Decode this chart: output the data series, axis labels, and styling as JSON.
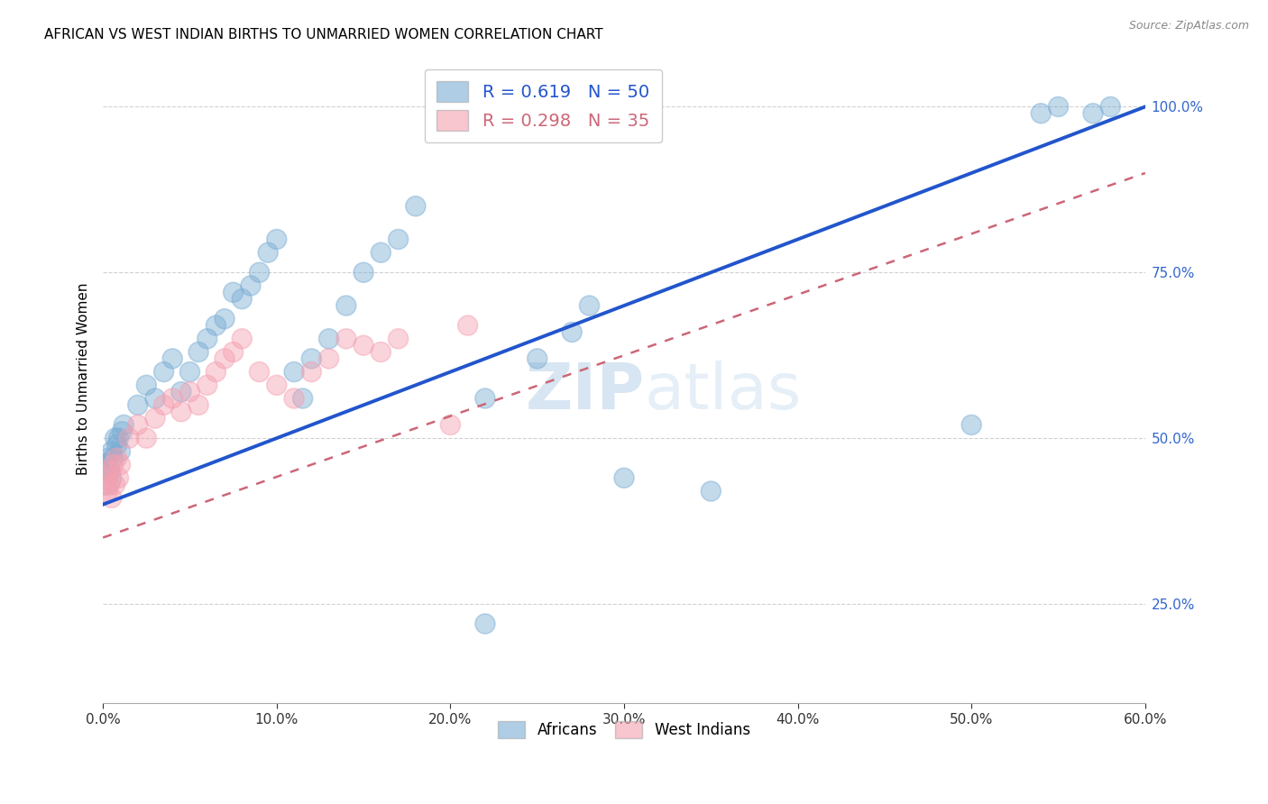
{
  "title": "AFRICAN VS WEST INDIAN BIRTHS TO UNMARRIED WOMEN CORRELATION CHART",
  "source": "Source: ZipAtlas.com",
  "ylabel": "Births to Unmarried Women",
  "xlim": [
    0.0,
    0.6
  ],
  "ylim": [
    0.1,
    1.08
  ],
  "legend_R_african": "R = 0.619",
  "legend_N_african": "N = 50",
  "legend_R_west_indian": "R = 0.298",
  "legend_N_west_indian": "N = 35",
  "african_color": "#7aadd4",
  "west_indian_color": "#f4a0b0",
  "african_line_color": "#2255cc",
  "west_indian_line_color": "#cc6677",
  "background_color": "#ffffff",
  "grid_color": "#cccccc",
  "african_line": [
    0.0,
    0.4,
    0.6,
    1.0
  ],
  "west_indian_line": [
    0.0,
    0.35,
    0.6,
    0.9
  ],
  "africans_x": [
    0.001,
    0.002,
    0.003,
    0.004,
    0.005,
    0.006,
    0.007,
    0.008,
    0.009,
    0.01,
    0.011,
    0.012,
    0.02,
    0.025,
    0.03,
    0.035,
    0.04,
    0.045,
    0.05,
    0.055,
    0.06,
    0.065,
    0.07,
    0.075,
    0.08,
    0.085,
    0.09,
    0.095,
    0.1,
    0.11,
    0.115,
    0.12,
    0.13,
    0.14,
    0.15,
    0.16,
    0.17,
    0.18,
    0.22,
    0.25,
    0.27,
    0.28,
    0.3,
    0.35,
    0.22,
    0.5,
    0.54,
    0.55,
    0.57,
    0.58
  ],
  "africans_y": [
    0.44,
    0.46,
    0.47,
    0.45,
    0.48,
    0.47,
    0.5,
    0.49,
    0.5,
    0.48,
    0.51,
    0.52,
    0.55,
    0.58,
    0.56,
    0.6,
    0.62,
    0.57,
    0.6,
    0.63,
    0.65,
    0.67,
    0.68,
    0.72,
    0.71,
    0.73,
    0.75,
    0.78,
    0.8,
    0.6,
    0.56,
    0.62,
    0.65,
    0.7,
    0.75,
    0.78,
    0.8,
    0.85,
    0.56,
    0.62,
    0.66,
    0.7,
    0.44,
    0.42,
    0.22,
    0.52,
    0.99,
    1.0,
    0.99,
    1.0
  ],
  "africans_size": [
    700,
    300,
    250,
    250,
    250,
    250,
    250,
    250,
    250,
    250,
    250,
    250,
    250,
    250,
    250,
    250,
    250,
    250,
    250,
    250,
    250,
    250,
    250,
    250,
    250,
    250,
    250,
    250,
    250,
    250,
    250,
    250,
    250,
    250,
    250,
    250,
    250,
    250,
    250,
    250,
    250,
    250,
    250,
    250,
    250,
    250,
    250,
    250,
    250,
    250
  ],
  "west_indians_x": [
    0.001,
    0.002,
    0.003,
    0.004,
    0.005,
    0.006,
    0.007,
    0.008,
    0.009,
    0.01,
    0.015,
    0.02,
    0.025,
    0.03,
    0.035,
    0.04,
    0.045,
    0.05,
    0.055,
    0.06,
    0.065,
    0.07,
    0.075,
    0.08,
    0.09,
    0.1,
    0.11,
    0.12,
    0.13,
    0.14,
    0.15,
    0.16,
    0.17,
    0.2,
    0.21
  ],
  "west_indians_y": [
    0.42,
    0.44,
    0.43,
    0.45,
    0.41,
    0.46,
    0.43,
    0.47,
    0.44,
    0.46,
    0.5,
    0.52,
    0.5,
    0.53,
    0.55,
    0.56,
    0.54,
    0.57,
    0.55,
    0.58,
    0.6,
    0.62,
    0.63,
    0.65,
    0.6,
    0.58,
    0.56,
    0.6,
    0.62,
    0.65,
    0.64,
    0.63,
    0.65,
    0.52,
    0.67
  ],
  "west_indians_size": [
    400,
    300,
    300,
    250,
    250,
    250,
    250,
    250,
    250,
    250,
    250,
    250,
    250,
    250,
    250,
    250,
    250,
    250,
    250,
    250,
    250,
    250,
    250,
    250,
    250,
    250,
    250,
    250,
    250,
    250,
    250,
    250,
    250,
    250,
    250
  ]
}
